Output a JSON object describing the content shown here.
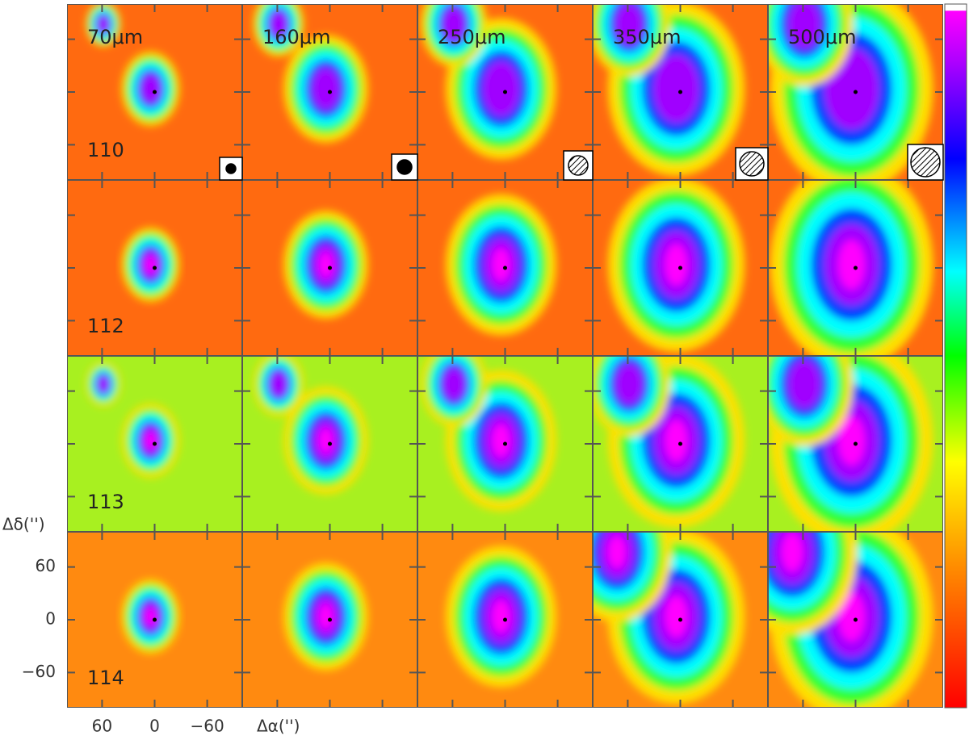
{
  "panels": {
    "wavelengths": [
      "70μm",
      "160μm",
      "250μm",
      "350μm",
      "500μm"
    ],
    "sources": [
      "110",
      "112",
      "113",
      "114"
    ]
  },
  "axes": {
    "x_label": "Δα('')",
    "y_label": "Δδ('')",
    "xlim": [
      100,
      -100
    ],
    "ylim": [
      -100,
      100
    ],
    "xticks": [
      60,
      0,
      {
        "value": -60,
        "label": "−60"
      }
    ],
    "yticks": [
      60,
      0,
      {
        "value": -60,
        "label": "−60"
      }
    ]
  }
}
